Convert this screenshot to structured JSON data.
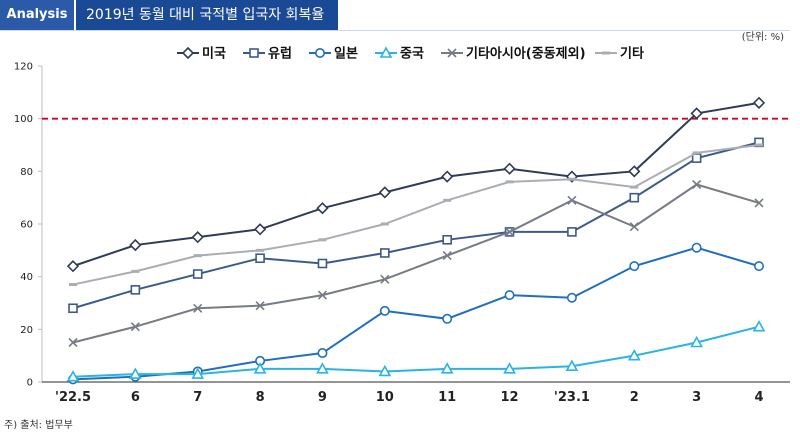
{
  "header": {
    "tag": "Analysis",
    "title": "2019년 동월 대비 국적별 입국자 회복율"
  },
  "unit": "(단위: %)",
  "source": "주) 출처: 법무부",
  "chart_data": {
    "type": "line",
    "title": "2019년 동월 대비 국적별 입국자 회복율",
    "xlabel": "",
    "ylabel": "",
    "categories": [
      "'22.5",
      "6",
      "7",
      "8",
      "9",
      "10",
      "11",
      "12",
      "'23.1",
      "2",
      "3",
      "4"
    ],
    "ylim": [
      0,
      120
    ],
    "yticks": [
      0,
      20,
      40,
      60,
      80,
      100,
      120
    ],
    "reference_line": {
      "y": 100,
      "color": "#d0021b",
      "style": "dashed"
    },
    "legend_position": "top",
    "grid": false,
    "series": [
      {
        "name": "미국",
        "marker": "diamond",
        "color": "#2f3b57",
        "values": [
          44,
          52,
          55,
          58,
          66,
          72,
          78,
          81,
          78,
          80,
          102,
          106
        ]
      },
      {
        "name": "유럽",
        "marker": "square",
        "color": "#3d5a8a",
        "values": [
          28,
          35,
          41,
          47,
          45,
          49,
          54,
          57,
          57,
          70,
          85,
          91
        ]
      },
      {
        "name": "일본",
        "marker": "circle",
        "color": "#1f6fbf",
        "values": [
          1,
          2,
          4,
          8,
          11,
          27,
          24,
          33,
          32,
          44,
          51,
          44
        ]
      },
      {
        "name": "중국",
        "marker": "triangle",
        "color": "#2ab3e3",
        "values": [
          2,
          3,
          3,
          5,
          5,
          4,
          5,
          5,
          6,
          10,
          15,
          21
        ]
      },
      {
        "name": "기타아시아(중동제외)",
        "marker": "x",
        "color": "#767b86",
        "values": [
          15,
          21,
          28,
          29,
          33,
          39,
          48,
          57,
          69,
          59,
          75,
          68
        ]
      },
      {
        "name": "기타",
        "marker": "dash",
        "color": "#a9adb5",
        "values": [
          37,
          42,
          48,
          50,
          54,
          60,
          69,
          76,
          77,
          74,
          87,
          90
        ]
      }
    ]
  }
}
